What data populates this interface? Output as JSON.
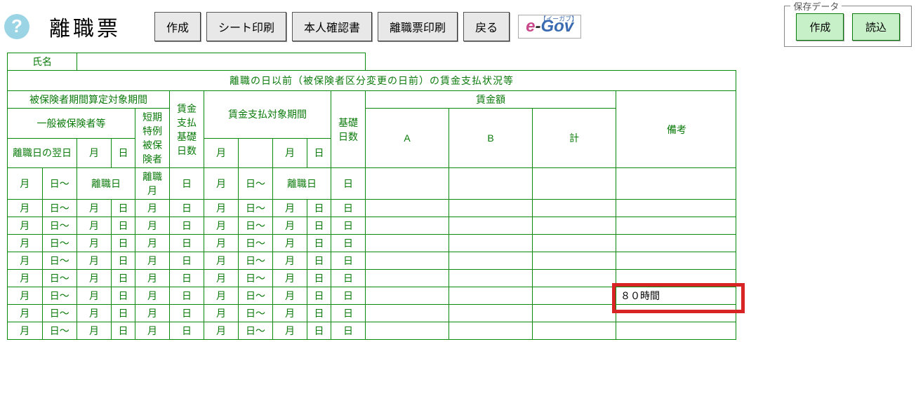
{
  "toolbar": {
    "help": "?",
    "title": "離職票",
    "buttons": {
      "create": "作成",
      "printSheet": "シート印刷",
      "idDoc": "本人確認書",
      "printForm": "離職票印刷",
      "back": "戻る"
    },
    "egov": {
      "e": "e",
      "dash": "-",
      "g": "G",
      "ov": "ov",
      "ruby": "【イーガブ】"
    },
    "saveBox": {
      "label": "保存データ",
      "create": "作成",
      "load": "読込"
    }
  },
  "table": {
    "nameLabel": "氏名",
    "sectionTitle": "離職の日以前（被保険者区分変更の日前）の賃金支払状況等",
    "headers": {
      "insuredPeriod": "被保険者期間算定対象期間",
      "general": "一般被保険者等",
      "shortTerm": "短期特例被保険者",
      "wageBasisDays": "賃金支払基礎日数",
      "wagePayPeriod": "賃金支払対象期間",
      "basisDays": "基礎日数",
      "wageAmount": "賃金額",
      "colA": "A",
      "colB": "B",
      "colTotal": "計",
      "remarks": "備考",
      "nextDay": "離職日の翌日",
      "month": "月",
      "day": "日"
    },
    "units": {
      "m": "月",
      "d": "日",
      "t": "日～",
      "rm": "離職月",
      "rd": "離職日"
    },
    "rows": [
      {
        "c1": "月",
        "c2": "日～",
        "c3": "離職日",
        "c4": "",
        "c5": "離職月",
        "c6": "日",
        "c7": "月",
        "c8": "日～",
        "c9": "離職日",
        "c10": "",
        "c11": "日",
        "a": "",
        "b": "",
        "t": "",
        "r": ""
      },
      {
        "c1": "月",
        "c2": "日～",
        "c3": "月",
        "c4": "日",
        "c5": "月",
        "c6": "日",
        "c7": "月",
        "c8": "日～",
        "c9": "月",
        "c10": "日",
        "c11": "日",
        "a": "",
        "b": "",
        "t": "",
        "r": ""
      },
      {
        "c1": "月",
        "c2": "日～",
        "c3": "月",
        "c4": "日",
        "c5": "月",
        "c6": "日",
        "c7": "月",
        "c8": "日～",
        "c9": "月",
        "c10": "日",
        "c11": "日",
        "a": "",
        "b": "",
        "t": "",
        "r": ""
      },
      {
        "c1": "月",
        "c2": "日～",
        "c3": "月",
        "c4": "日",
        "c5": "月",
        "c6": "日",
        "c7": "月",
        "c8": "日～",
        "c9": "月",
        "c10": "日",
        "c11": "日",
        "a": "",
        "b": "",
        "t": "",
        "r": ""
      },
      {
        "c1": "月",
        "c2": "日～",
        "c3": "月",
        "c4": "日",
        "c5": "月",
        "c6": "日",
        "c7": "月",
        "c8": "日～",
        "c9": "月",
        "c10": "日",
        "c11": "日",
        "a": "",
        "b": "",
        "t": "",
        "r": ""
      },
      {
        "c1": "月",
        "c2": "日～",
        "c3": "月",
        "c4": "日",
        "c5": "月",
        "c6": "日",
        "c7": "月",
        "c8": "日～",
        "c9": "月",
        "c10": "日",
        "c11": "日",
        "a": "",
        "b": "",
        "t": "",
        "r": ""
      },
      {
        "c1": "月",
        "c2": "日～",
        "c3": "月",
        "c4": "日",
        "c5": "月",
        "c6": "日",
        "c7": "月",
        "c8": "日～",
        "c9": "月",
        "c10": "日",
        "c11": "日",
        "a": "",
        "b": "",
        "t": "",
        "r": "８０時間"
      },
      {
        "c1": "月",
        "c2": "日～",
        "c3": "月",
        "c4": "日",
        "c5": "月",
        "c6": "日",
        "c7": "月",
        "c8": "日～",
        "c9": "月",
        "c10": "日",
        "c11": "日",
        "a": "",
        "b": "",
        "t": "",
        "r": ""
      },
      {
        "c1": "月",
        "c2": "日～",
        "c3": "月",
        "c4": "日",
        "c5": "月",
        "c6": "日",
        "c7": "月",
        "c8": "日～",
        "c9": "月",
        "c10": "日",
        "c11": "日",
        "a": "",
        "b": "",
        "t": "",
        "r": ""
      }
    ],
    "highlight": {
      "rowIndex": 6,
      "colors": {
        "border": "#d82424"
      }
    }
  },
  "colors": {
    "tableBorder": "#0a8a0a",
    "text": "#0a7a0a",
    "btnGreen": "#c8f0c8"
  }
}
